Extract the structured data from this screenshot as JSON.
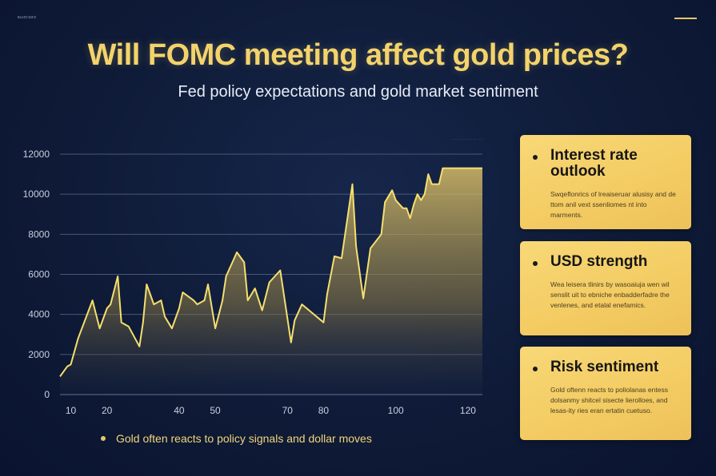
{
  "title": "Will FOMC meeting affect gold prices?",
  "subtitle": "Fed policy expectations and gold market sentiment",
  "brand": "вωαгaαα",
  "colors": {
    "accent": "#f3d36b",
    "line": "#f5df6e",
    "background": "#0e1a36",
    "card": "#f5cf66"
  },
  "chart_data": {
    "type": "area",
    "title": "",
    "xlabel": "",
    "ylabel": "",
    "xlim": [
      7,
      124
    ],
    "ylim": [
      0,
      12000
    ],
    "yticks": [
      0,
      2000,
      4000,
      6000,
      8000,
      10000,
      12000
    ],
    "xticks": [
      10,
      20,
      40,
      50,
      70,
      80,
      100,
      120
    ],
    "grid": true,
    "series": [
      {
        "x": [
          7,
          9,
          10,
          12,
          16,
          18,
          20,
          21,
          23,
          24,
          26,
          29,
          30,
          31,
          33,
          35,
          36,
          38,
          40,
          41,
          44,
          45,
          47,
          48,
          50,
          52,
          53,
          56,
          58,
          59,
          61,
          63,
          65,
          68,
          69,
          71,
          72,
          74,
          76,
          80,
          81,
          83,
          85,
          88,
          89,
          91,
          93,
          96,
          97,
          99,
          100,
          102,
          103,
          104,
          105,
          106,
          107,
          108,
          109,
          110,
          112,
          113,
          115,
          116,
          118,
          120,
          122,
          124
        ],
        "y": [
          900,
          1400,
          1500,
          2800,
          4700,
          3300,
          4300,
          4500,
          5900,
          3600,
          3400,
          2400,
          3600,
          5500,
          4500,
          4700,
          3900,
          3300,
          4300,
          5100,
          4700,
          4500,
          4700,
          5500,
          3300,
          4700,
          5900,
          7100,
          6600,
          4700,
          5300,
          4200,
          5600,
          6200,
          5000,
          2600,
          3700,
          4500,
          4200,
          3600,
          5000,
          6900,
          6800,
          10500,
          7400,
          4800,
          7300,
          8000,
          9600,
          10200,
          9700,
          9300,
          9300,
          8800,
          9500,
          10000,
          9700,
          10000,
          11000,
          10500,
          10500,
          11300,
          11300,
          11300,
          11300,
          11300,
          11300,
          11300
        ]
      }
    ]
  },
  "cards": [
    {
      "title": "Interest rate outlook",
      "body": "Swqeflonrics of lreaiseruar alusisy and de ttom anil vext ssenliomes nt into marments."
    },
    {
      "title": "USD strength",
      "body": "Wea leisera tlinirs by wasoaiuja wen wil senslit uit to ebniche enbadderfadre the venlenes, and etalal enefamics."
    },
    {
      "title": "Risk sentiment",
      "body": "Gold oftenn reacts to poliolanas entess dolsanmy shitcel sisecte lierolloes, and lesas-ity ries eran ertatin cuetuso."
    }
  ],
  "legend": {
    "text": "Gold often reacts to policy signals and dollar moves"
  },
  "chart_tag": "···· ··· ···· ····· ···· ····"
}
